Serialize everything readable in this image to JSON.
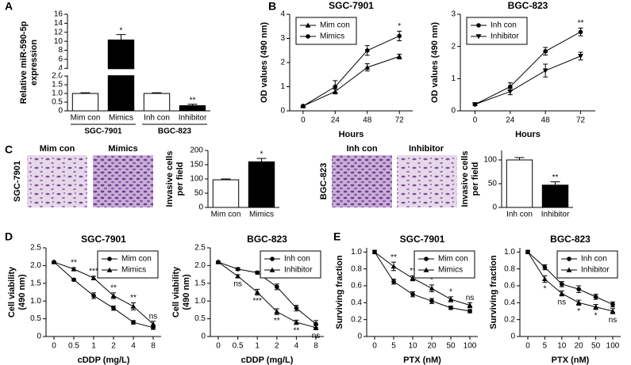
{
  "panel_labels": [
    "A",
    "B",
    "C",
    "D",
    "E"
  ],
  "micrographs": [
    {
      "row_label": "SGC-7901",
      "labels": [
        "Mim con",
        "Mimics"
      ]
    },
    {
      "row_label": "BGC-823",
      "labels": [
        "Inh con",
        "Inhibitor"
      ]
    }
  ],
  "chart_data": [
    {
      "type": "bar",
      "ylabel": [
        "Relative miR-590-5p",
        "expression"
      ],
      "categories": [
        "Mim con",
        "Mimics",
        "Inh con",
        "Inhibitor"
      ],
      "groups": [
        "SGC-7901",
        "BGC-823"
      ],
      "values": [
        1.0,
        10.3,
        1.0,
        0.3
      ],
      "errors": [
        0.04,
        1.2,
        0.04,
        0.08
      ],
      "value_annotations": [
        null,
        "*",
        null,
        "**"
      ],
      "colors": [
        "#ffffff",
        "#000000",
        "#ffffff",
        "#000000"
      ],
      "ylim": [
        0,
        16
      ],
      "axis_break": [
        2,
        4
      ],
      "yticks": [
        0,
        0.5,
        {
          "value": 1,
          "label": "1.0"
        },
        1.5,
        {
          "value": 2,
          "label": "2.0"
        },
        4,
        6,
        8,
        10,
        12,
        14,
        16
      ]
    },
    {
      "type": "line",
      "title": "SGC-7901",
      "ylabel": [
        "OD values (490 nm)"
      ],
      "xlabel": "Hours",
      "x": [
        0,
        24,
        48,
        72
      ],
      "xlim": [
        -10,
        82
      ],
      "xticks": [
        0,
        24,
        48,
        72
      ],
      "ylim": [
        0,
        4
      ],
      "yticks": [
        0,
        1,
        2,
        3,
        4
      ],
      "legend": "top-left",
      "series": [
        {
          "name": "Mim con",
          "color": "#000000",
          "marker": "triangle",
          "values": [
            0.2,
            0.8,
            1.8,
            2.25
          ],
          "errors": [
            0.03,
            0.1,
            0.15,
            0.1
          ]
        },
        {
          "name": "Mimics",
          "color": "#000000",
          "marker": "circle",
          "values": [
            0.2,
            1.0,
            2.5,
            3.1
          ],
          "errors": [
            0.03,
            0.25,
            0.2,
            0.2
          ]
        }
      ],
      "annotations": [
        null,
        null,
        null,
        "*"
      ],
      "annotation_side": "above"
    },
    {
      "type": "line",
      "title": "BGC-823",
      "ylabel": [
        "OD values (490 nm)"
      ],
      "xlabel": "Hours",
      "x": [
        0,
        24,
        48,
        72
      ],
      "xlim": [
        -10,
        82
      ],
      "xticks": [
        0,
        24,
        48,
        72
      ],
      "ylim": [
        0,
        3
      ],
      "yticks": [
        0,
        1,
        2,
        3
      ],
      "legend": "top-left",
      "series": [
        {
          "name": "Inh con",
          "color": "#000000",
          "marker": "circle",
          "values": [
            0.2,
            0.75,
            1.85,
            2.45
          ],
          "errors": [
            0.03,
            0.12,
            0.12,
            0.12
          ]
        },
        {
          "name": "Inhibitor",
          "color": "#000000",
          "marker": "triangle-down",
          "values": [
            0.2,
            0.6,
            1.25,
            1.7
          ],
          "errors": [
            0.03,
            0.1,
            0.2,
            0.12
          ]
        }
      ],
      "annotations": [
        null,
        null,
        null,
        "**"
      ],
      "annotation_side": "above"
    },
    {
      "type": "bar",
      "ylabel": [
        "Invasive cells",
        "per field"
      ],
      "categories": [
        "Mim con",
        "Mimics"
      ],
      "values": [
        97,
        160
      ],
      "errors": [
        3,
        12
      ],
      "value_annotations": [
        null,
        "*"
      ],
      "colors": [
        "#ffffff",
        "#000000"
      ],
      "ylim": [
        0,
        200
      ],
      "yticks": [
        0,
        50,
        100,
        150,
        200
      ]
    },
    {
      "type": "bar",
      "ylabel": [
        "Invasive cells",
        "per field"
      ],
      "categories": [
        "Inh con",
        "Inhibitor"
      ],
      "values": [
        100,
        47
      ],
      "errors": [
        5,
        7
      ],
      "value_annotations": [
        null,
        "**"
      ],
      "colors": [
        "#ffffff",
        "#000000"
      ],
      "ylim": [
        0,
        120
      ],
      "yticks": [
        0,
        50,
        100
      ]
    },
    {
      "type": "line",
      "title": "SGC-7901",
      "ylabel": [
        "Cell viability",
        "(490 nm)"
      ],
      "xlabel": "cDDP (mg/L)",
      "categories": [
        "0",
        "0.5",
        "1",
        "2",
        "4",
        "8"
      ],
      "ylim": [
        0,
        2.5
      ],
      "yticks": [
        0,
        0.5,
        {
          "value": 1,
          "label": "1.0"
        },
        1.5,
        {
          "value": 2,
          "label": "2.0"
        },
        2.5
      ],
      "legend": "top-right",
      "series": [
        {
          "name": "Mim con",
          "color": "#000000",
          "marker": "circle",
          "values": [
            2.1,
            1.6,
            1.15,
            0.8,
            0.4,
            0.25
          ],
          "errors": [
            0.02,
            0.03,
            0.08,
            0.06,
            0.05,
            0.05
          ]
        },
        {
          "name": "Mimics",
          "color": "#000000",
          "marker": "triangle",
          "values": [
            2.1,
            1.9,
            1.65,
            1.15,
            0.85,
            0.35
          ],
          "errors": [
            0.02,
            0.04,
            0.05,
            0.08,
            0.1,
            0.08
          ]
        }
      ],
      "annotations": [
        null,
        "**",
        "***",
        "**",
        "**",
        "ns"
      ],
      "annotation_side": "above"
    },
    {
      "type": "line",
      "title": "BGC-823",
      "ylabel": [
        "Cell viability",
        "(490 nm)"
      ],
      "xlabel": "cDDP (mg/L)",
      "categories": [
        "0",
        "0.5",
        "1",
        "2",
        "4",
        "8"
      ],
      "ylim": [
        0,
        2.5
      ],
      "yticks": [
        0,
        0.5,
        {
          "value": 1,
          "label": "1.0"
        },
        1.5,
        {
          "value": 2,
          "label": "2.0"
        },
        2.5
      ],
      "legend": "top-right",
      "series": [
        {
          "name": "Inh con",
          "color": "#000000",
          "marker": "circle",
          "values": [
            2.1,
            1.9,
            1.8,
            1.4,
            0.8,
            0.35
          ],
          "errors": [
            0.02,
            0.04,
            0.04,
            0.08,
            0.08,
            0.1
          ]
        },
        {
          "name": "Inhibitor",
          "color": "#000000",
          "marker": "triangle",
          "values": [
            2.1,
            1.7,
            1.25,
            0.7,
            0.4,
            0.25
          ],
          "errors": [
            0.02,
            0.04,
            0.08,
            0.08,
            0.06,
            0.06
          ]
        }
      ],
      "annotations": [
        null,
        "ns",
        "***",
        "**",
        "**",
        "ns"
      ],
      "annotation_side": "below"
    },
    {
      "type": "line",
      "title": "SGC-7901",
      "ylabel": [
        "Surviving fraction"
      ],
      "xlabel": "PTX (nM)",
      "categories": [
        "0",
        "5",
        "10",
        "20",
        "50",
        "100"
      ],
      "ylim": [
        0,
        1.05
      ],
      "yticks": [
        0,
        0.2,
        0.4,
        0.6,
        0.8,
        {
          "value": 1,
          "label": "1.0"
        }
      ],
      "legend": "top-right",
      "series": [
        {
          "name": "Mim con",
          "color": "#000000",
          "marker": "circle",
          "values": [
            1.0,
            0.65,
            0.5,
            0.42,
            0.34,
            0.3
          ],
          "errors": [
            0.02,
            0.03,
            0.03,
            0.03,
            0.02,
            0.02
          ]
        },
        {
          "name": "Mimics",
          "color": "#000000",
          "marker": "triangle",
          "values": [
            1.0,
            0.83,
            0.69,
            0.57,
            0.44,
            0.37
          ],
          "errors": [
            0.02,
            0.05,
            0.03,
            0.04,
            0.03,
            0.03
          ]
        }
      ],
      "annotations": [
        null,
        "**",
        "**",
        "*",
        "*",
        "ns"
      ],
      "annotation_side": "above"
    },
    {
      "type": "line",
      "title": "BGC-823",
      "ylabel": [
        "Surviving fraction"
      ],
      "xlabel": "PTX (nM)",
      "categories": [
        "0",
        "5",
        "10",
        "20",
        "50",
        "100"
      ],
      "ylim": [
        0,
        1.05
      ],
      "yticks": [
        0,
        0.2,
        0.4,
        0.6,
        0.8,
        {
          "value": 1,
          "label": "1.0"
        }
      ],
      "legend": "top-right",
      "series": [
        {
          "name": "Inh con",
          "color": "#000000",
          "marker": "circle",
          "values": [
            1.0,
            0.82,
            0.62,
            0.56,
            0.47,
            0.38
          ],
          "errors": [
            0.02,
            0.03,
            0.03,
            0.04,
            0.03,
            0.03
          ]
        },
        {
          "name": "Inhibitor",
          "color": "#000000",
          "marker": "triangle",
          "values": [
            1.0,
            0.68,
            0.51,
            0.4,
            0.35,
            0.3
          ],
          "errors": [
            0.02,
            0.04,
            0.03,
            0.03,
            0.03,
            0.03
          ]
        }
      ],
      "annotations": [
        null,
        "*",
        "ns",
        "*",
        "*",
        "ns"
      ],
      "annotation_side": "below"
    }
  ]
}
